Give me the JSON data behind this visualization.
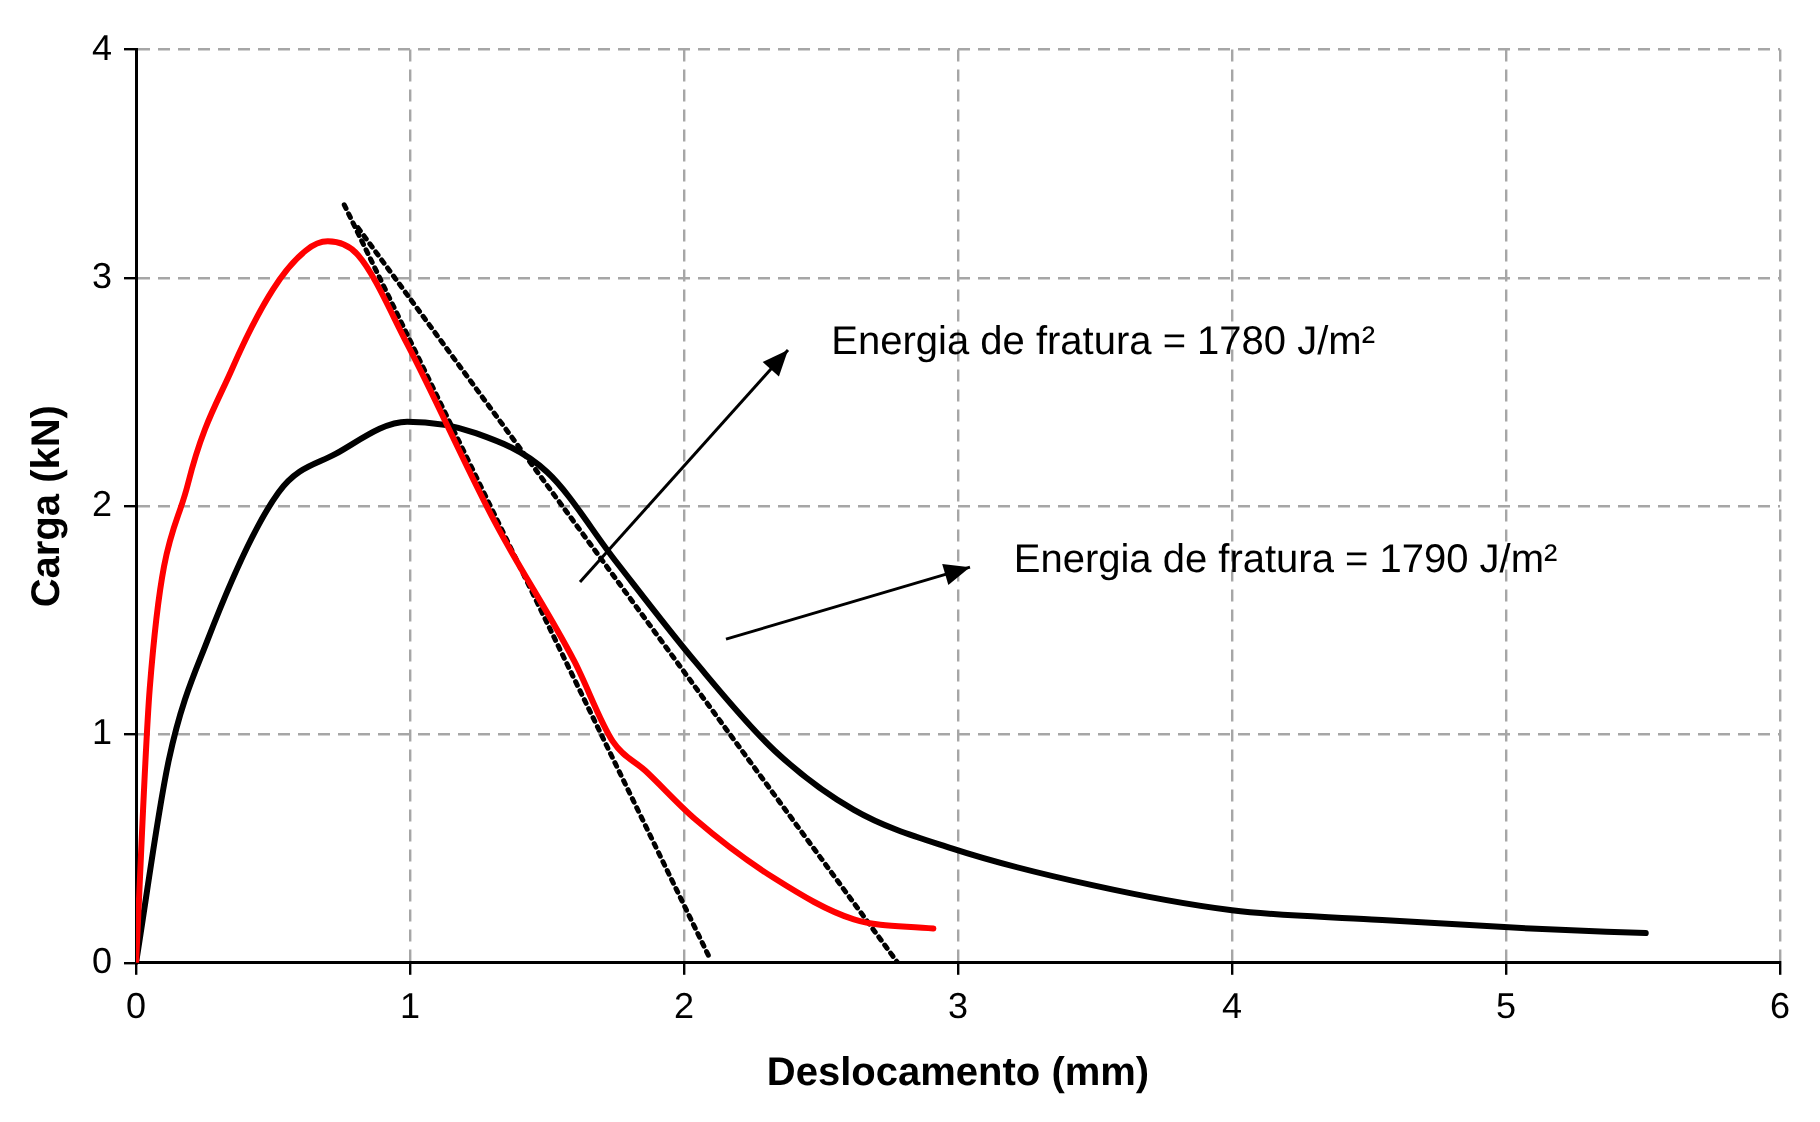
{
  "chart_data": {
    "type": "line",
    "xlabel": "Deslocamento (mm)",
    "ylabel": "Carga (kN)",
    "xlim": [
      0,
      6
    ],
    "xticks": [
      0,
      1,
      2,
      3,
      4,
      5,
      6
    ],
    "ylim": [
      0,
      4
    ],
    "yticks": [
      0,
      1,
      2,
      3,
      4
    ],
    "grid": true,
    "legend": false,
    "marker": "none",
    "series": [
      {
        "color": "#ff0000",
        "line_style": "solid",
        "x": [
          0,
          0.05,
          0.19,
          0.35,
          0.5,
          0.62,
          0.7,
          0.81,
          0.99,
          1.31,
          1.6,
          1.74,
          1.86,
          2.04,
          2.33,
          2.62,
          2.91
        ],
        "values": [
          0,
          1.2,
          2.1,
          2.6,
          2.95,
          3.12,
          3.16,
          3.1,
          2.71,
          1.93,
          1.32,
          0.97,
          0.84,
          0.63,
          0.37,
          0.19,
          0.15
        ]
      },
      {
        "color": "#000000",
        "line_style": "solid",
        "x": [
          0,
          0.12,
          0.26,
          0.52,
          0.73,
          0.99,
          1.24,
          1.5,
          1.75,
          2.04,
          2.33,
          2.62,
          2.98,
          3.49,
          4.0,
          4.51,
          5.09,
          5.51
        ],
        "values": [
          0,
          0.89,
          1.41,
          2.06,
          2.23,
          2.37,
          2.32,
          2.15,
          1.76,
          1.32,
          0.93,
          0.67,
          0.5,
          0.34,
          0.23,
          0.19,
          0.15,
          0.13
        ]
      },
      {
        "color": "#000000",
        "line_style": "dotted",
        "x": [
          0.76,
          2.09
        ],
        "values": [
          3.32,
          0.03
        ]
      },
      {
        "color": "#000000",
        "line_style": "dotted",
        "x": [
          0.81,
          2.78
        ],
        "values": [
          3.22,
          0.0
        ]
      }
    ],
    "annotations": [
      "Energia de fratura = 1780 J/m²",
      "Energia de fratura = 1790 J/m²"
    ]
  }
}
